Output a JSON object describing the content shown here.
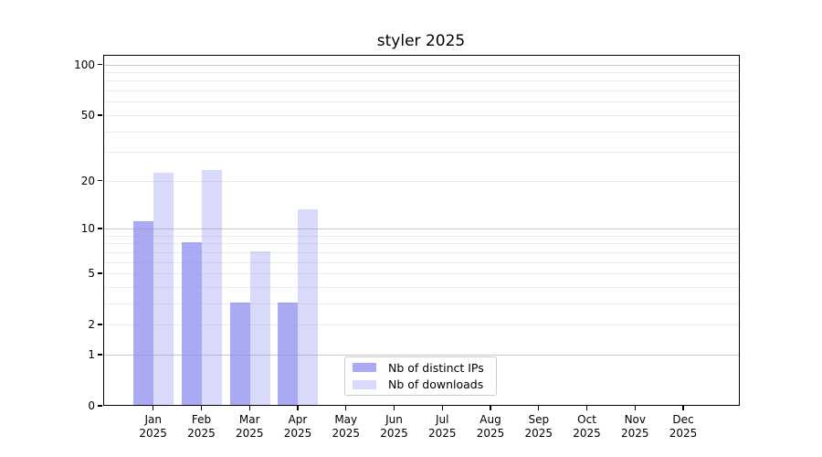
{
  "title": "styler 2025",
  "chart_data": {
    "type": "bar",
    "title": "styler 2025",
    "categories": [
      "Jan 2025",
      "Feb 2025",
      "Mar 2025",
      "Apr 2025",
      "May 2025",
      "Jun 2025",
      "Jul 2025",
      "Aug 2025",
      "Sep 2025",
      "Oct 2025",
      "Nov 2025",
      "Dec 2025"
    ],
    "x_months": [
      "Jan",
      "Feb",
      "Mar",
      "Apr",
      "May",
      "Jun",
      "Jul",
      "Aug",
      "Sep",
      "Oct",
      "Nov",
      "Dec"
    ],
    "x_year": "2025",
    "series": [
      {
        "name": "Nb of distinct IPs",
        "fill": "rgba(140,140,240,0.75)",
        "values": [
          11,
          8,
          3,
          3,
          null,
          null,
          null,
          null,
          null,
          null,
          null,
          null
        ]
      },
      {
        "name": "Nb of downloads",
        "fill": "rgba(140,140,240,0.33)",
        "values": [
          22,
          23,
          7,
          13,
          null,
          null,
          null,
          null,
          null,
          null,
          null,
          null
        ]
      }
    ],
    "yscale": "log1p",
    "ylim": [
      0,
      113
    ],
    "y_ticks": [
      {
        "value": 0,
        "label": "0",
        "major": true
      },
      {
        "value": 1,
        "label": "1",
        "major": true
      },
      {
        "value": 2,
        "label": "2",
        "major": false
      },
      {
        "value": 5,
        "label": "5",
        "major": false
      },
      {
        "value": 10,
        "label": "10",
        "major": true
      },
      {
        "value": 20,
        "label": "20",
        "major": false
      },
      {
        "value": 50,
        "label": "50",
        "major": false
      },
      {
        "value": 100,
        "label": "100",
        "major": true
      }
    ],
    "y_minor_gridlines": [
      3,
      4,
      6,
      7,
      8,
      9,
      30,
      40,
      60,
      70,
      80,
      90
    ],
    "grid": true,
    "legend_position": "lower center"
  },
  "colors": {
    "bar_base": "#8c8cf0",
    "grid_major": "#c8c8c8",
    "grid_minor": "#ececec",
    "axis": "#000000",
    "legend_border": "#cccccc",
    "background": "#ffffff"
  }
}
